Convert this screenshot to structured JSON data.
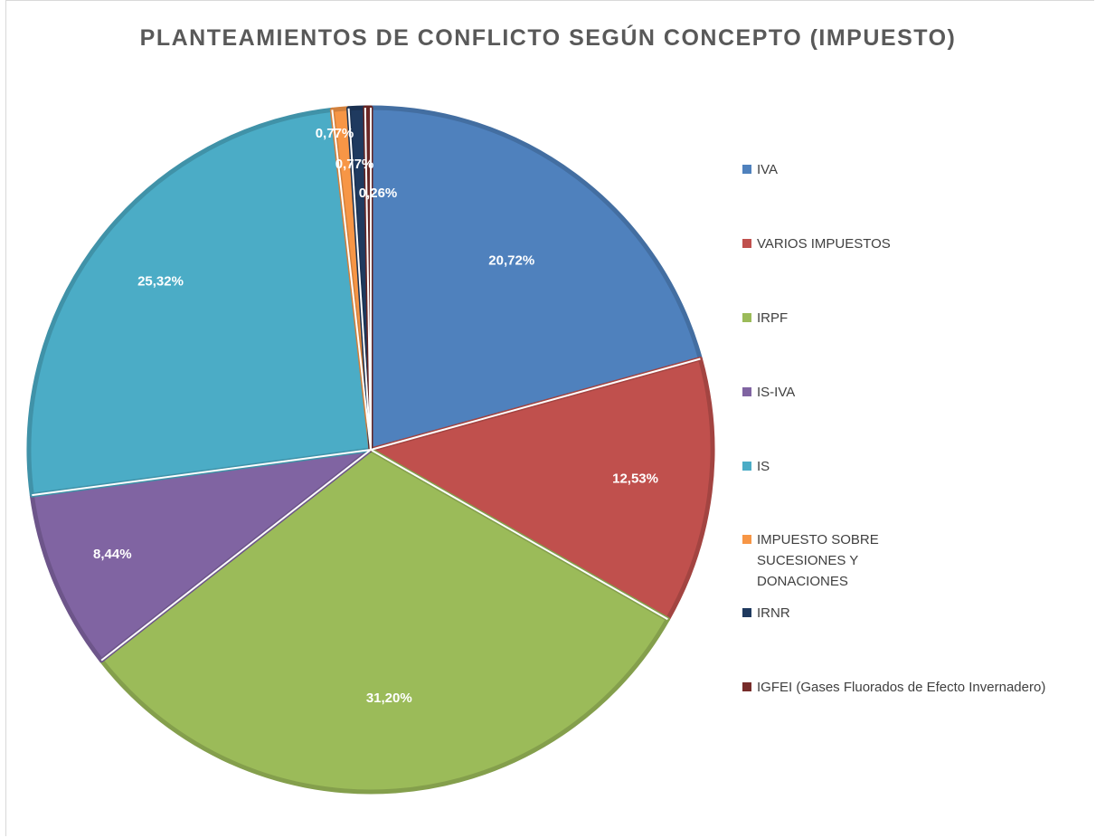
{
  "chart_data": {
    "type": "pie",
    "title": "PLANTEAMIENTOS DE CONFLICTO SEGÚN CONCEPTO (IMPUESTO)",
    "legend_position": "right",
    "slices": [
      {
        "label": "IVA",
        "value": 20.72,
        "display": "20,72%",
        "color": "#4F81BD"
      },
      {
        "label": "VARIOS IMPUESTOS",
        "value": 12.53,
        "display": "12,53%",
        "color": "#C0504D"
      },
      {
        "label": "IRPF",
        "value": 31.2,
        "display": "31,20%",
        "color": "#9BBB59"
      },
      {
        "label": "IS-IVA",
        "value": 8.44,
        "display": "8,44%",
        "color": "#8064A2"
      },
      {
        "label": "IS",
        "value": 25.32,
        "display": "25,32%",
        "color": "#4BACC6"
      },
      {
        "label": "IMPUESTO SOBRE\nSUCESIONES Y\nDONACIONES",
        "value": 0.77,
        "display": "0,77%",
        "color": "#F79646"
      },
      {
        "label": "IRNR",
        "value": 0.77,
        "display": "0,77%",
        "color": "#1F3A5F"
      },
      {
        "label": "IGFEI (Gases Fluorados de Efecto Invernadero)",
        "value": 0.26,
        "display": "0,26%",
        "color": "#772C2A"
      }
    ]
  }
}
